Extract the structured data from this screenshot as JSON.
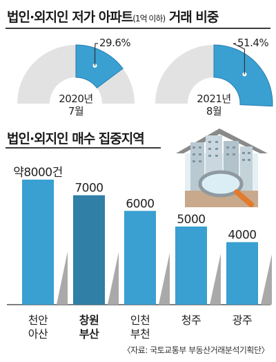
{
  "titles": {
    "share": "법인·외지인 저가 아파트",
    "share_sub": "(1억 이하)",
    "share_tail": "거래 비중",
    "regions": "법인·외지인 매수 집중지역"
  },
  "source": "〈자료: 국토교통부 부동산거래분석기획단〉",
  "colors": {
    "bar": "#3a9fd1",
    "bar_highlight": "#2f7fa6",
    "gauge_bg": "#e2e2e2",
    "shadow": "#a9a9a9"
  },
  "chart_data": [
    {
      "type": "pie",
      "title": "법인·외지인 저가 아파트(1억 이하) 거래 비중",
      "slices": [
        {
          "period_line1": "2020년",
          "period_line2": "7월",
          "value": 29.6,
          "label": "29.6%"
        },
        {
          "period_line1": "2021년",
          "period_line2": "8월",
          "value": 51.4,
          "label": "51.4%"
        }
      ]
    },
    {
      "type": "bar",
      "title": "법인·외지인 매수 집중지역",
      "categories": [
        {
          "line1": "천안",
          "line2": "아산"
        },
        {
          "line1": "창원",
          "line2": "부산"
        },
        {
          "line1": "인천",
          "line2": "부천"
        },
        {
          "line1": "청주",
          "line2": ""
        },
        {
          "line1": "광주",
          "line2": ""
        }
      ],
      "values": [
        8000,
        7000,
        6000,
        5000,
        4000
      ],
      "value_labels": [
        "약8000건",
        "7000",
        "6000",
        "5000",
        "4000"
      ],
      "highlight_index": 1,
      "ylim": [
        0,
        8000
      ]
    }
  ]
}
